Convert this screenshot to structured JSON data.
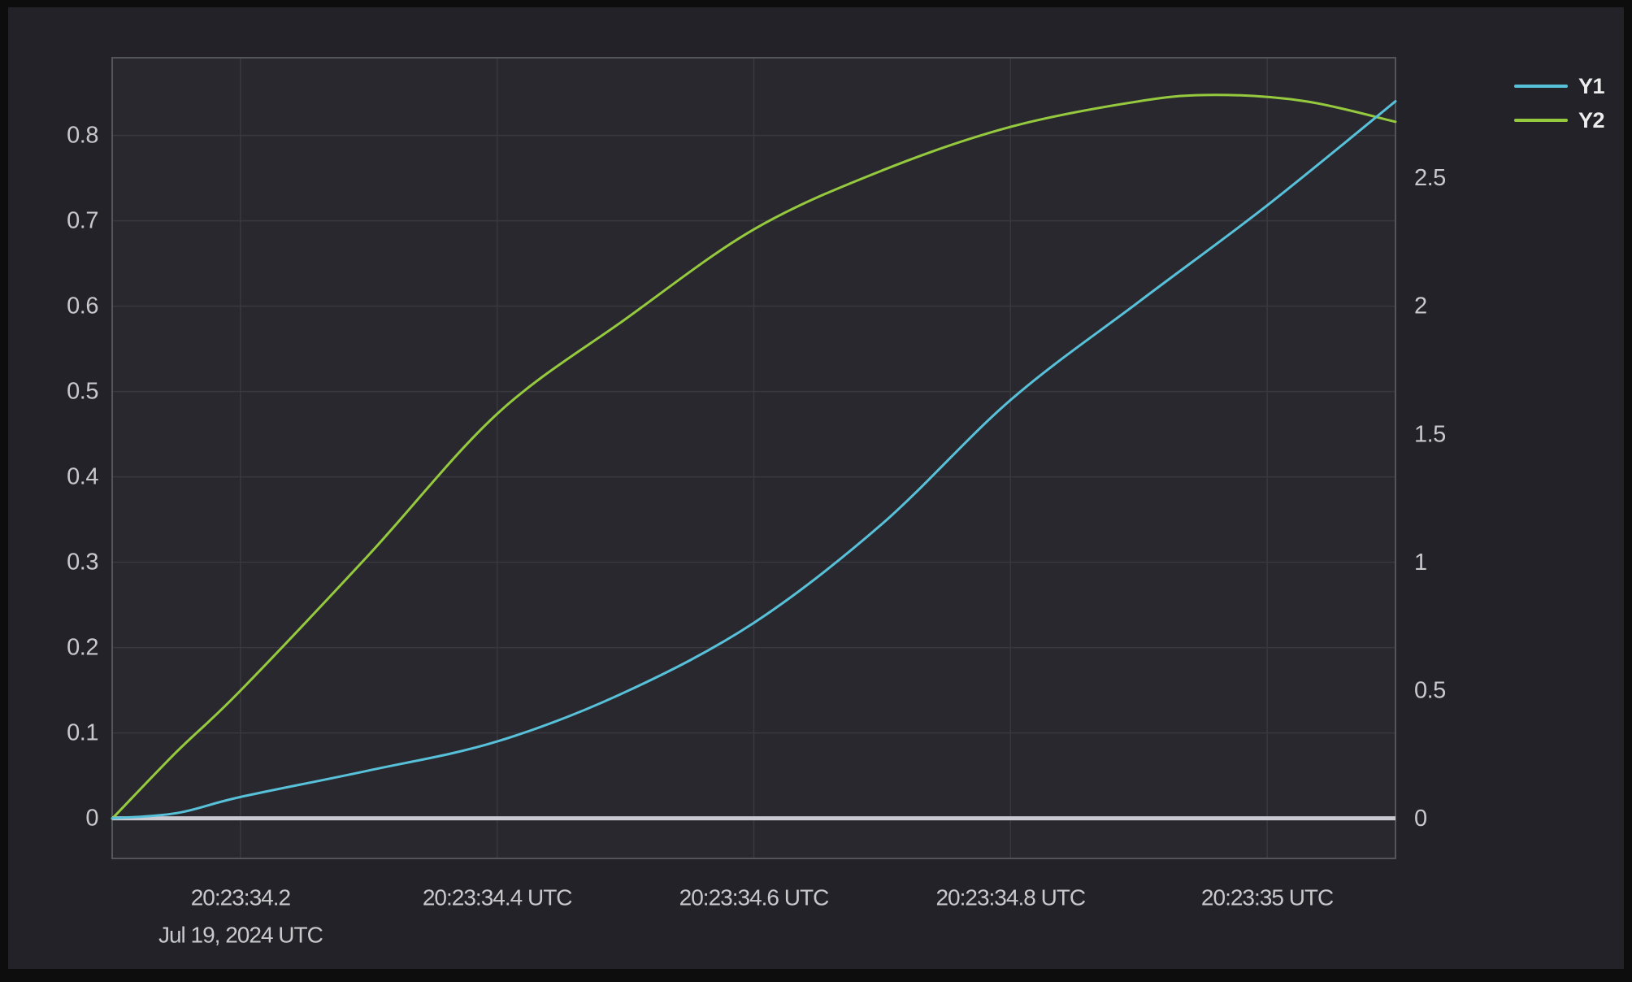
{
  "panel": {
    "background": "#232228",
    "plot_background": "#29282e",
    "plot_border_color": "#54545b",
    "grid_color": "#38383e",
    "tick_label_color": "#c8c9cb",
    "legend_label_color": "#eceded",
    "frame_color": "#0d0d0e"
  },
  "legend": {
    "position": "top-right",
    "items": [
      {
        "label": "Y1",
        "color": "#58c1da"
      },
      {
        "label": "Y2",
        "color": "#95ca3f"
      }
    ]
  },
  "chart_data": {
    "type": "line",
    "title": "",
    "grid": true,
    "legend_position": "top-right",
    "x_axis": {
      "kind": "time",
      "start": "20:23:34.1",
      "end": "20:23:35.1",
      "date_label": "Jul 19, 2024 UTC",
      "ticks": [
        {
          "pos": 0.1,
          "label": "20:23:34.2"
        },
        {
          "pos": 0.3,
          "label": "20:23:34.4 UTC"
        },
        {
          "pos": 0.5,
          "label": "20:23:34.6 UTC"
        },
        {
          "pos": 0.7,
          "label": "20:23:34.8 UTC"
        },
        {
          "pos": 0.9,
          "label": "20:23:35 UTC"
        }
      ]
    },
    "left_axis": {
      "min": -0.047,
      "max": 0.891,
      "ticks": [
        {
          "v": 0,
          "label": "0"
        },
        {
          "v": 0.1,
          "label": "0.1"
        },
        {
          "v": 0.2,
          "label": "0.2"
        },
        {
          "v": 0.3,
          "label": "0.3"
        },
        {
          "v": 0.4,
          "label": "0.4"
        },
        {
          "v": 0.5,
          "label": "0.5"
        },
        {
          "v": 0.6,
          "label": "0.6"
        },
        {
          "v": 0.7,
          "label": "0.7"
        },
        {
          "v": 0.8,
          "label": "0.8"
        }
      ]
    },
    "right_axis": {
      "min": -0.155,
      "max": 2.97,
      "ticks": [
        {
          "v": 0,
          "label": "0"
        },
        {
          "v": 0.5,
          "label": "0.5"
        },
        {
          "v": 1,
          "label": "1"
        },
        {
          "v": 1.5,
          "label": "1.5"
        },
        {
          "v": 2,
          "label": "2"
        },
        {
          "v": 2.5,
          "label": "2.5"
        }
      ]
    },
    "zero_line": {
      "value": 0,
      "color": "#c9c9d1",
      "width": 5
    },
    "series": [
      {
        "name": "Y1",
        "axis": "left",
        "color": "#58c1da",
        "points": [
          [
            0,
            0
          ],
          [
            0.05,
            0.006
          ],
          [
            0.1,
            0.025
          ],
          [
            0.2,
            0.056
          ],
          [
            0.3,
            0.09
          ],
          [
            0.4,
            0.148
          ],
          [
            0.5,
            0.229
          ],
          [
            0.6,
            0.345
          ],
          [
            0.7,
            0.49
          ],
          [
            0.8,
            0.605
          ],
          [
            0.9,
            0.718
          ],
          [
            1,
            0.84
          ]
        ]
      },
      {
        "name": "Y2",
        "axis": "right",
        "color": "#95ca3f",
        "points": [
          [
            0,
            0
          ],
          [
            0.05,
            0.26
          ],
          [
            0.1,
            0.5
          ],
          [
            0.2,
            1.03
          ],
          [
            0.3,
            1.58
          ],
          [
            0.4,
            1.95
          ],
          [
            0.5,
            2.3
          ],
          [
            0.6,
            2.53
          ],
          [
            0.7,
            2.7
          ],
          [
            0.8,
            2.8
          ],
          [
            0.86,
            2.825
          ],
          [
            0.93,
            2.8
          ],
          [
            1,
            2.72
          ]
        ]
      }
    ]
  }
}
